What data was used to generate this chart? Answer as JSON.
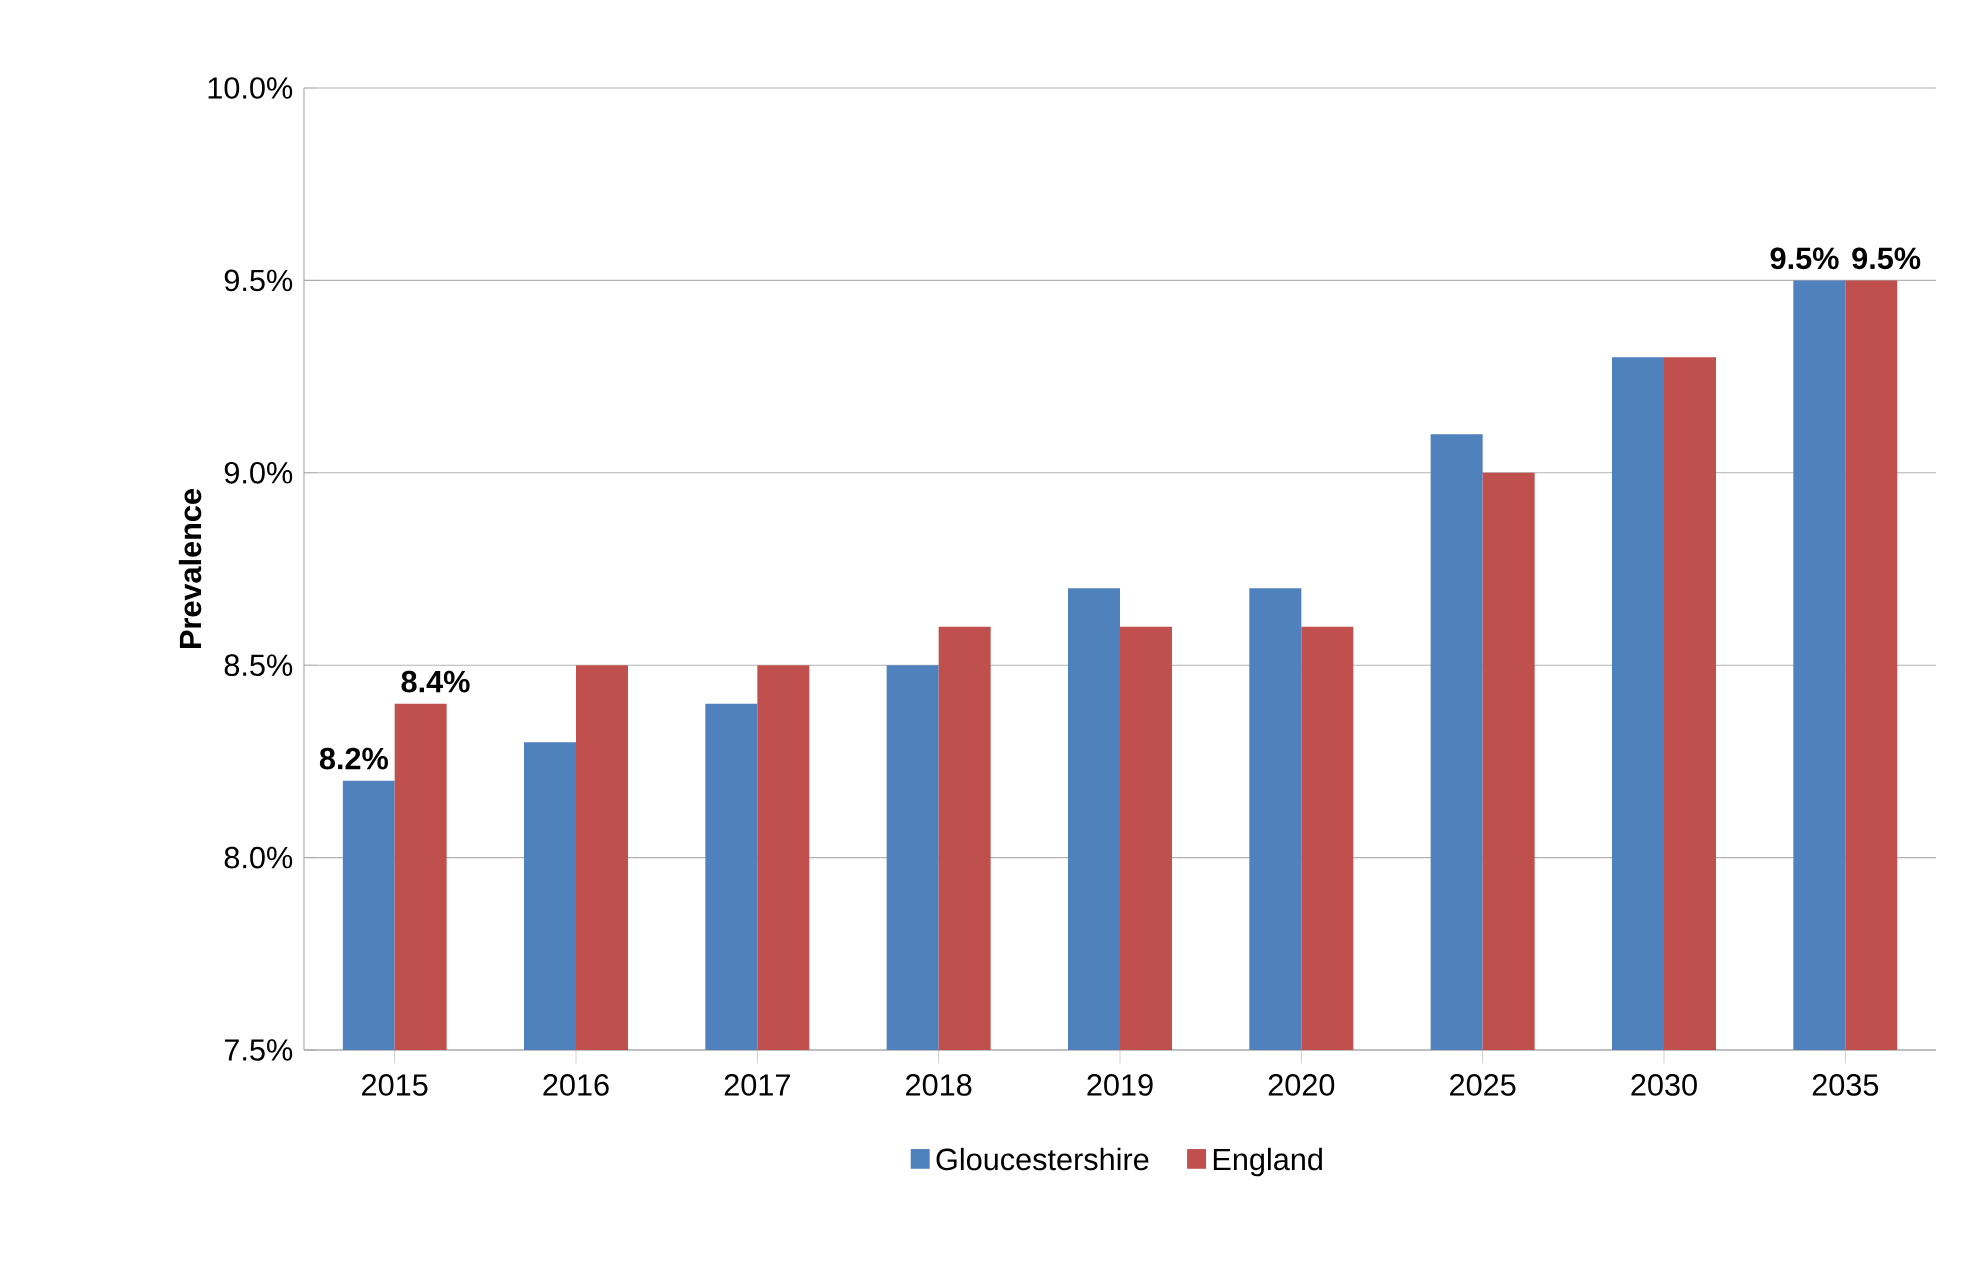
{
  "chart_data": {
    "type": "bar",
    "ylabel": "Prevalence",
    "categories": [
      "2015",
      "2016",
      "2017",
      "2018",
      "2019",
      "2020",
      "2025",
      "2030",
      "2035"
    ],
    "series": [
      {
        "name": "Gloucestershire",
        "color": "#4f81bd",
        "values": [
          8.2,
          8.3,
          8.4,
          8.5,
          8.7,
          8.7,
          9.1,
          9.3,
          9.5
        ],
        "value_labels": [
          "8.2%",
          null,
          null,
          null,
          null,
          null,
          null,
          null,
          "9.5%"
        ]
      },
      {
        "name": "England",
        "color": "#c0504d",
        "values": [
          8.4,
          8.5,
          8.5,
          8.6,
          8.6,
          8.6,
          9.0,
          9.3,
          9.5
        ],
        "value_labels": [
          "8.4%",
          null,
          null,
          null,
          null,
          null,
          null,
          null,
          "9.5%"
        ]
      }
    ],
    "ylim": [
      7.5,
      10.0
    ],
    "yticks": [
      {
        "value": 7.5,
        "label": "7.5%"
      },
      {
        "value": 8.0,
        "label": "8.0%"
      },
      {
        "value": 8.5,
        "label": "8.5%"
      },
      {
        "value": 9.0,
        "label": "9.0%"
      },
      {
        "value": 9.5,
        "label": "9.5%"
      },
      {
        "value": 10.0,
        "label": "10.0%"
      }
    ],
    "grid": "y",
    "legend": "bottom"
  }
}
